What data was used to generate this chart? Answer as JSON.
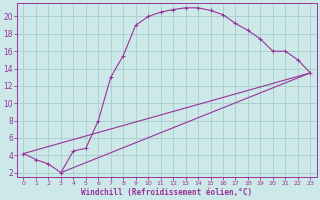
{
  "xlabel": "Windchill (Refroidissement éolien,°C)",
  "background_color": "#cce8e8",
  "grid_color": "#aacccc",
  "line_color": "#993399",
  "xlim": [
    -0.5,
    23.5
  ],
  "ylim": [
    1.5,
    21.5
  ],
  "xticks": [
    0,
    1,
    2,
    3,
    4,
    5,
    6,
    7,
    8,
    9,
    10,
    11,
    12,
    13,
    14,
    15,
    16,
    17,
    18,
    19,
    20,
    21,
    22,
    23
  ],
  "yticks": [
    2,
    4,
    6,
    8,
    10,
    12,
    14,
    16,
    18,
    20
  ],
  "curve1_x": [
    0,
    1,
    2,
    3,
    4,
    5,
    6,
    7,
    8,
    9,
    10,
    11,
    12,
    13,
    14,
    15,
    16,
    17,
    18,
    19,
    20,
    21,
    22,
    23
  ],
  "curve1_y": [
    4.2,
    3.5,
    3.0,
    2.0,
    4.5,
    4.8,
    8.0,
    13.0,
    15.5,
    19.0,
    20.0,
    20.5,
    20.8,
    21.0,
    21.0,
    20.7,
    20.2,
    19.2,
    18.4,
    17.4,
    16.0,
    16.0,
    15.0,
    13.5
  ],
  "curve2_x": [
    0,
    23
  ],
  "curve2_y": [
    4.2,
    13.5
  ],
  "curve3_x": [
    3,
    23
  ],
  "curve3_y": [
    2.0,
    13.5
  ],
  "xlabel_fontsize": 5.5,
  "tick_fontsize": 5.5
}
